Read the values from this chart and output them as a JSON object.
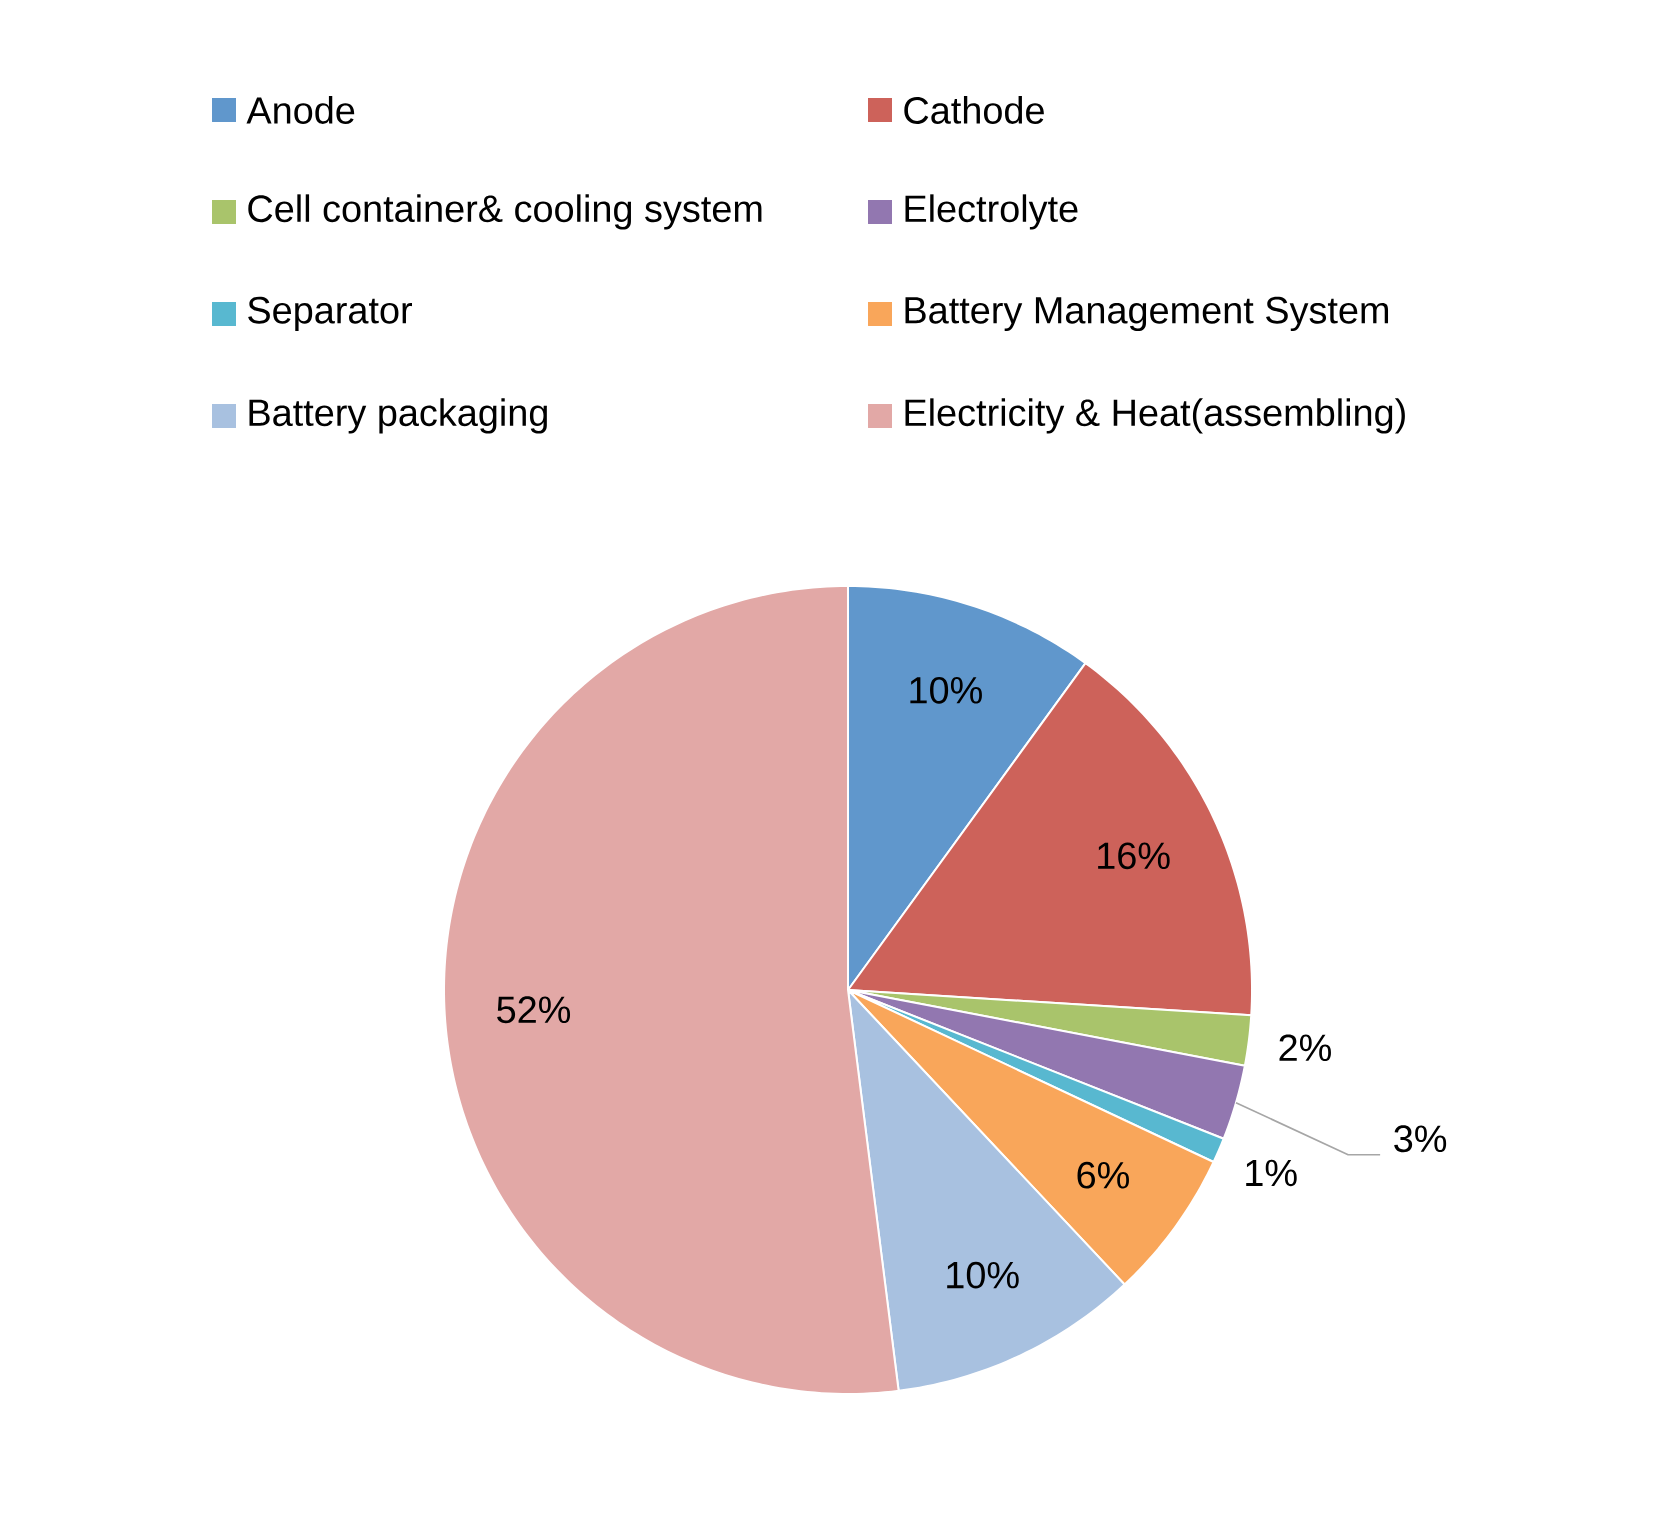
{
  "chart_data": {
    "type": "pie",
    "categories": [
      "Anode",
      "Cathode",
      "Cell container& cooling system",
      "Electrolyte",
      "Separator",
      "Battery Management System",
      "Battery packaging",
      "Electricity & Heat(assembling)"
    ],
    "values": [
      10,
      16,
      2,
      3,
      1,
      6,
      10,
      52
    ],
    "value_labels": [
      "10%",
      "16%",
      "2%",
      "3%",
      "1%",
      "6%",
      "10%",
      "52%"
    ],
    "colors": [
      "#6097cc",
      "#cd625a",
      "#a9c46b",
      "#9277b0",
      "#58b8d0",
      "#f9a65a",
      "#a8c1e0",
      "#e2a8a6"
    ],
    "legend": "top"
  }
}
